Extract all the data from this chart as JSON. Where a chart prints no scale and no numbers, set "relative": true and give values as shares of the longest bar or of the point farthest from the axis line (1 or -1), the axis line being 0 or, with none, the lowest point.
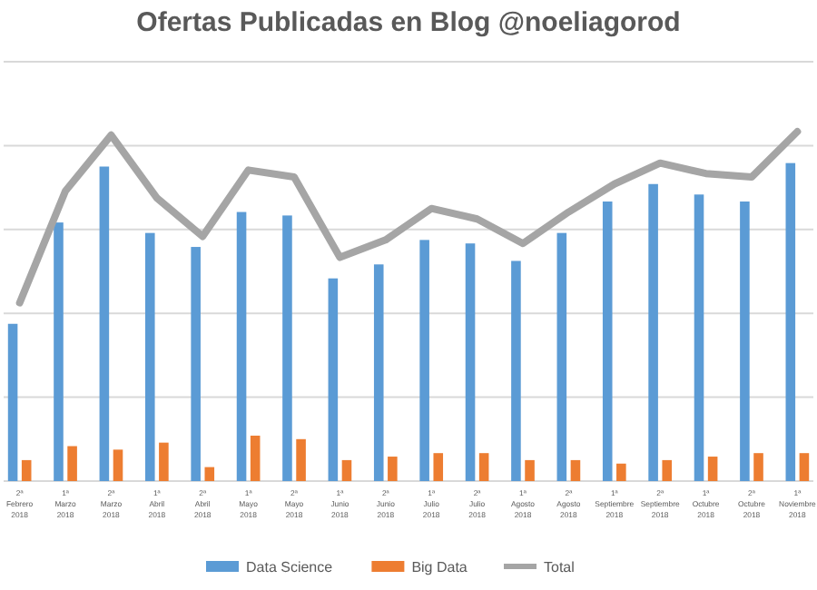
{
  "chart_data": {
    "type": "bar",
    "title": "Ofertas Publicadas en Blog @noeliagorod",
    "relative": true,
    "grid": "y",
    "legend": "bottom",
    "categories": [
      "2ª Febrero 2018",
      "1ª Marzo 2018",
      "2ª Marzo 2018",
      "1ª Abril 2018",
      "2ª Abril 2018",
      "1ª Mayo 2018",
      "2ª Mayo 2018",
      "1ª Junio 2018",
      "2ª Junio 2018",
      "1ª Julio 2018",
      "2ª Julio 2018",
      "1ª Agosto 2018",
      "2ª Agosto 2018",
      "1ª Septiembre 2018",
      "2ª Septiembre 2018",
      "1ª Octubre 2018",
      "2ª Octubre 2018",
      "1ª Noviembre 2018"
    ],
    "series": [
      {
        "name": "Data Science",
        "color": "#5b9bd5",
        "values": [
          0.45,
          0.74,
          0.9,
          0.71,
          0.67,
          0.77,
          0.76,
          0.58,
          0.62,
          0.69,
          0.68,
          0.63,
          0.71,
          0.8,
          0.85,
          0.82,
          0.8,
          0.91
        ]
      },
      {
        "name": "Big Data",
        "color": "#ed7d31",
        "values": [
          0.06,
          0.1,
          0.09,
          0.11,
          0.04,
          0.13,
          0.12,
          0.06,
          0.07,
          0.08,
          0.08,
          0.06,
          0.06,
          0.05,
          0.06,
          0.07,
          0.08,
          0.08
        ]
      },
      {
        "name": "Total",
        "type": "line",
        "color": "#a5a5a5",
        "values": [
          0.51,
          0.83,
          0.99,
          0.81,
          0.7,
          0.89,
          0.87,
          0.64,
          0.69,
          0.78,
          0.75,
          0.68,
          0.77,
          0.85,
          0.91,
          0.88,
          0.87,
          1
        ]
      }
    ]
  }
}
